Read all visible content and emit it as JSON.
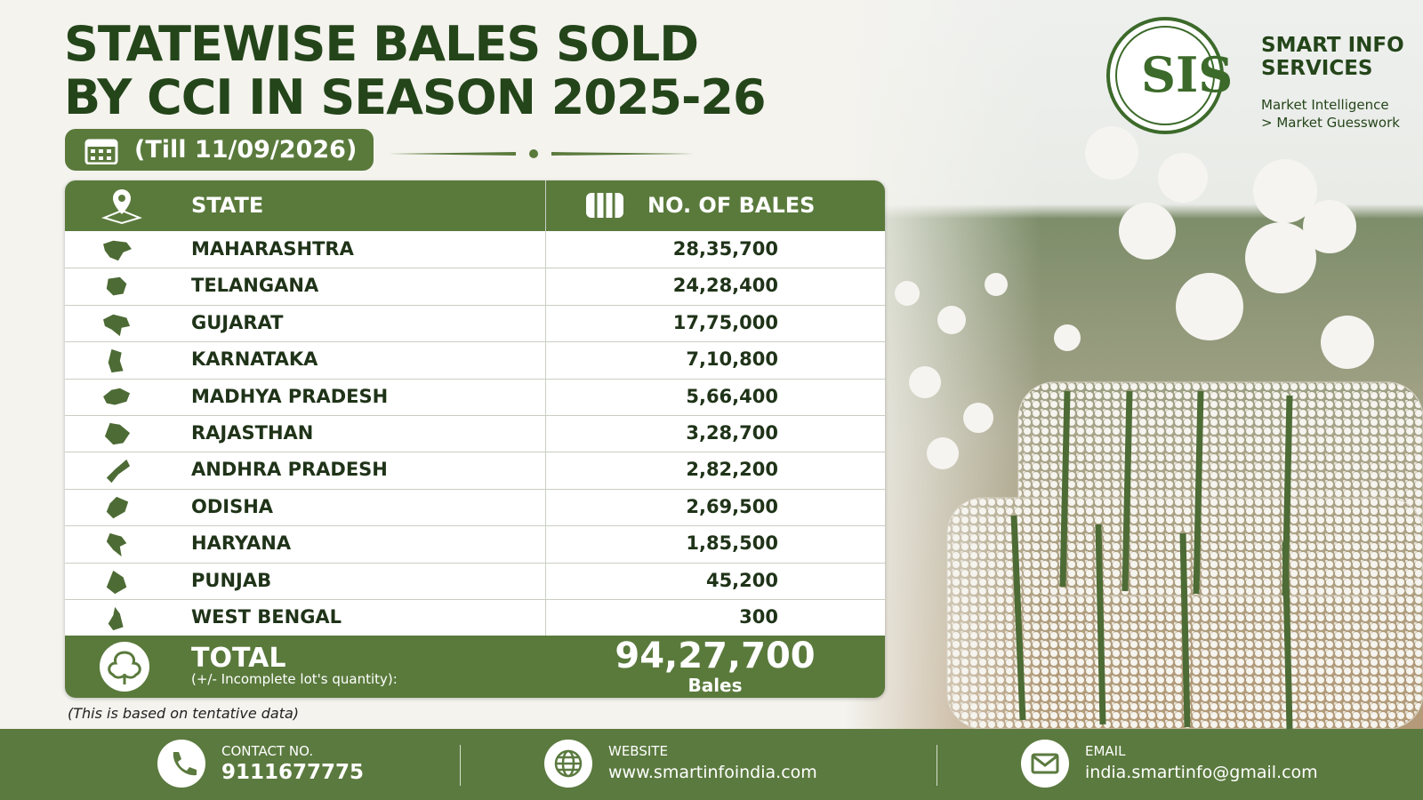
{
  "header": {
    "title_lines": [
      "STATEWISE BALES SOLD",
      "BY CCI IN SEASON 2025-26"
    ],
    "date": "(Till 11/09/2026)"
  },
  "brand": {
    "logo": "SIS",
    "name_lines": [
      "SMART INFO",
      "SERVICES"
    ],
    "tagline_lines": [
      "Market Intelligence",
      "> Market Guesswork"
    ]
  },
  "table": {
    "columns": [
      "STATE",
      "NO. OF BALES"
    ],
    "rows": [
      [
        "MAHARASHTRA",
        "28,35,700"
      ],
      [
        "TELANGANA",
        "24,28,400"
      ],
      [
        "GUJARAT",
        "17,75,000"
      ],
      [
        "KARNATAKA",
        "7,10,800"
      ],
      [
        "MADHYA PRADESH",
        "5,66,400"
      ],
      [
        "RAJASTHAN",
        "3,28,700"
      ],
      [
        "ANDHRA PRADESH",
        "2,82,200"
      ],
      [
        "ODISHA",
        "2,69,500"
      ],
      [
        "HARYANA",
        "1,85,500"
      ],
      [
        "PUNJAB",
        "45,200"
      ],
      [
        "WEST BENGAL",
        "300"
      ]
    ],
    "total": {
      "label": "TOTAL",
      "note": "(+/- Incomplete lot's quantity):",
      "value": "94,27,700",
      "unit": "Bales"
    }
  },
  "footnote": "(This is based on tentative data)",
  "footer": [
    {
      "label": "CONTACT NO.",
      "value": "9111677775"
    },
    {
      "label": "WEBSITE",
      "value": "www.smartinfoindia.com"
    },
    {
      "label": "EMAIL",
      "value": "india.smartinfo@gmail.com"
    }
  ]
}
